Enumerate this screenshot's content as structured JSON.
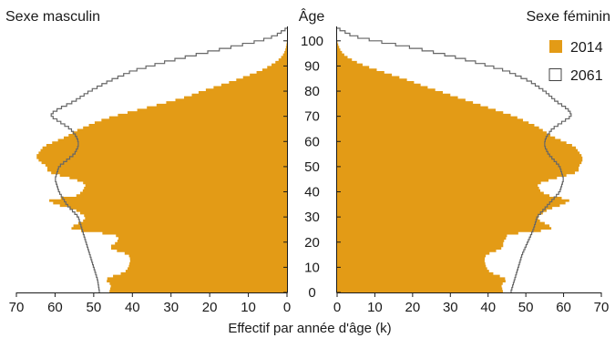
{
  "chart_data": {
    "type": "area",
    "subtype": "population-pyramid",
    "title": "",
    "xlabel": "Effectif par année d'âge (k)",
    "ylabel": "Âge",
    "left_title": "Sexe masculin",
    "right_title": "Sexe féminin",
    "x_ticks_left": [
      70,
      60,
      50,
      40,
      30,
      20,
      10,
      0
    ],
    "x_ticks_right": [
      0,
      10,
      20,
      30,
      40,
      50,
      60,
      70
    ],
    "age_ticks": [
      0,
      10,
      20,
      30,
      40,
      50,
      60,
      70,
      80,
      90,
      100
    ],
    "xlim": [
      0,
      70
    ],
    "ylim": [
      0,
      105
    ],
    "legend_position": "top-right",
    "colors": {
      "fill_2014": "#E39B16",
      "line_2061": "#666666"
    },
    "series": [
      {
        "name": "2014",
        "style": "filled",
        "male": {
          "age": [
            0,
            3,
            5,
            6,
            8,
            10,
            13,
            15,
            17,
            18,
            20,
            22,
            23,
            25,
            27,
            28,
            30,
            31,
            33,
            35,
            37,
            38,
            40,
            43,
            45,
            47,
            48,
            50,
            52,
            54,
            56,
            58,
            60,
            62,
            64,
            66,
            68,
            70,
            72,
            74,
            76,
            78,
            80,
            82,
            84,
            86,
            88,
            90,
            92,
            94,
            96,
            98,
            100
          ],
          "value": [
            46,
            45.5,
            47,
            46,
            42,
            41,
            40.5,
            41,
            45,
            46,
            44,
            43.5,
            45,
            56,
            55,
            53,
            52,
            53,
            55,
            60,
            62,
            55,
            53,
            52,
            55,
            60,
            62,
            62,
            64,
            65,
            64,
            63,
            60,
            57,
            55,
            52,
            49,
            45,
            40,
            35,
            30,
            25.5,
            22,
            18,
            14,
            10.5,
            7,
            4.5,
            2.5,
            1.2,
            0.5,
            0.2,
            0
          ]
        },
        "female": {
          "age": [
            0,
            3,
            5,
            6,
            8,
            10,
            13,
            15,
            17,
            18,
            20,
            22,
            23,
            25,
            27,
            28,
            30,
            31,
            33,
            35,
            37,
            38,
            40,
            43,
            45,
            47,
            48,
            50,
            52,
            54,
            56,
            58,
            60,
            62,
            64,
            66,
            68,
            70,
            72,
            74,
            76,
            78,
            80,
            82,
            84,
            86,
            88,
            90,
            92,
            94,
            96,
            98,
            100
          ],
          "value": [
            44,
            43.5,
            45,
            44,
            40.5,
            39.5,
            39,
            39.5,
            43,
            44,
            44,
            45,
            45,
            57,
            56,
            54,
            53,
            54,
            56,
            60,
            62,
            57,
            54,
            53,
            57,
            62,
            64,
            64,
            65,
            65,
            64,
            63,
            60,
            57,
            55,
            53,
            50,
            47,
            43,
            39,
            35,
            31,
            27,
            23,
            19.5,
            15.5,
            11.5,
            7.5,
            4.5,
            2.2,
            1,
            0.4,
            0
          ]
        }
      },
      {
        "name": "2061",
        "style": "outline",
        "male": {
          "age": [
            0,
            5,
            10,
            15,
            20,
            25,
            30,
            35,
            40,
            45,
            50,
            55,
            58,
            60,
            62,
            65,
            67,
            69,
            70,
            71,
            73,
            76,
            80,
            84,
            88,
            91,
            94,
            97,
            100,
            102,
            104,
            105
          ],
          "value": [
            48.5,
            49,
            50,
            51,
            52,
            53,
            54,
            57,
            59,
            60,
            59,
            55,
            54,
            54,
            54.5,
            56,
            58,
            60,
            61,
            61,
            59,
            55,
            51,
            46,
            40,
            33,
            25,
            16,
            7,
            3,
            1,
            0
          ]
        },
        "female": {
          "age": [
            0,
            5,
            10,
            15,
            20,
            25,
            30,
            35,
            40,
            45,
            50,
            55,
            58,
            60,
            62,
            65,
            67,
            69,
            70,
            71,
            73,
            76,
            80,
            84,
            88,
            91,
            94,
            97,
            100,
            102,
            104,
            105
          ],
          "value": [
            46,
            47,
            48,
            49,
            50.5,
            52,
            53,
            56,
            59,
            60,
            59,
            56,
            55,
            55,
            55.5,
            57,
            59,
            61,
            62,
            62,
            61,
            58,
            55,
            51,
            45,
            38,
            30,
            21,
            10,
            4,
            1.5,
            0
          ]
        }
      }
    ]
  }
}
